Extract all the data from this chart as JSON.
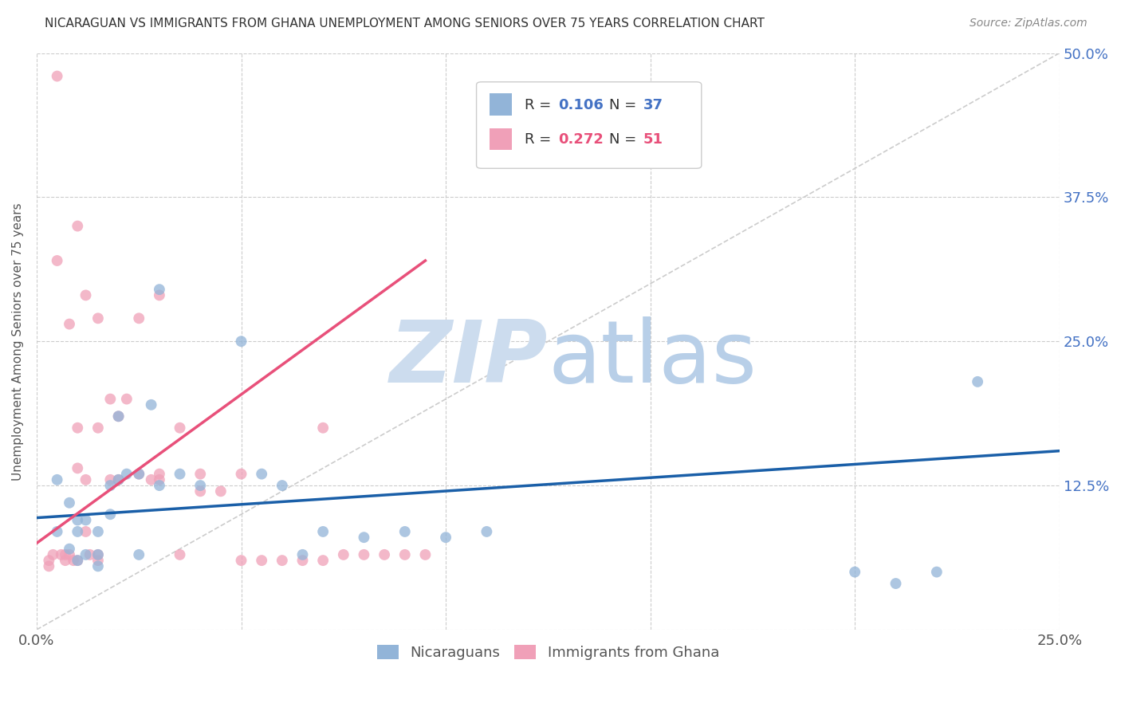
{
  "title": "NICARAGUAN VS IMMIGRANTS FROM GHANA UNEMPLOYMENT AMONG SENIORS OVER 75 YEARS CORRELATION CHART",
  "source": "Source: ZipAtlas.com",
  "ylabel": "Unemployment Among Seniors over 75 years",
  "xlim": [
    0,
    0.25
  ],
  "ylim": [
    0,
    0.5
  ],
  "xticks": [
    0.0,
    0.05,
    0.1,
    0.15,
    0.2,
    0.25
  ],
  "yticks": [
    0.0,
    0.125,
    0.25,
    0.375,
    0.5
  ],
  "blue_color": "#92b4d8",
  "pink_color": "#f0a0b8",
  "blue_line_color": "#1a5fa8",
  "pink_line_color": "#e8507a",
  "watermark_color": "#ccdcee",
  "blue_scatter_x": [
    0.005,
    0.005,
    0.008,
    0.008,
    0.01,
    0.01,
    0.01,
    0.012,
    0.012,
    0.015,
    0.015,
    0.015,
    0.018,
    0.018,
    0.02,
    0.02,
    0.022,
    0.025,
    0.025,
    0.028,
    0.03,
    0.03,
    0.035,
    0.04,
    0.05,
    0.055,
    0.06,
    0.065,
    0.07,
    0.08,
    0.09,
    0.1,
    0.11,
    0.2,
    0.21,
    0.22,
    0.23
  ],
  "blue_scatter_y": [
    0.13,
    0.085,
    0.11,
    0.07,
    0.095,
    0.085,
    0.06,
    0.095,
    0.065,
    0.085,
    0.065,
    0.055,
    0.125,
    0.1,
    0.185,
    0.13,
    0.135,
    0.135,
    0.065,
    0.195,
    0.295,
    0.125,
    0.135,
    0.125,
    0.25,
    0.135,
    0.125,
    0.065,
    0.085,
    0.08,
    0.085,
    0.08,
    0.085,
    0.05,
    0.04,
    0.05,
    0.215
  ],
  "pink_scatter_x": [
    0.003,
    0.003,
    0.004,
    0.005,
    0.005,
    0.006,
    0.007,
    0.007,
    0.008,
    0.008,
    0.009,
    0.01,
    0.01,
    0.01,
    0.012,
    0.012,
    0.013,
    0.015,
    0.015,
    0.015,
    0.018,
    0.018,
    0.02,
    0.02,
    0.022,
    0.025,
    0.025,
    0.028,
    0.03,
    0.03,
    0.03,
    0.035,
    0.035,
    0.04,
    0.04,
    0.045,
    0.05,
    0.05,
    0.055,
    0.06,
    0.065,
    0.07,
    0.07,
    0.075,
    0.08,
    0.085,
    0.09,
    0.095,
    0.01,
    0.012,
    0.015
  ],
  "pink_scatter_y": [
    0.06,
    0.055,
    0.065,
    0.48,
    0.32,
    0.065,
    0.06,
    0.065,
    0.265,
    0.065,
    0.06,
    0.35,
    0.175,
    0.06,
    0.29,
    0.085,
    0.065,
    0.27,
    0.175,
    0.06,
    0.2,
    0.13,
    0.185,
    0.13,
    0.2,
    0.27,
    0.135,
    0.13,
    0.13,
    0.29,
    0.135,
    0.175,
    0.065,
    0.12,
    0.135,
    0.12,
    0.06,
    0.135,
    0.06,
    0.06,
    0.06,
    0.175,
    0.06,
    0.065,
    0.065,
    0.065,
    0.065,
    0.065,
    0.14,
    0.13,
    0.065
  ],
  "blue_trend_x": [
    0.0,
    0.25
  ],
  "blue_trend_y": [
    0.097,
    0.155
  ],
  "pink_trend_x": [
    0.0,
    0.095
  ],
  "pink_trend_y": [
    0.075,
    0.32
  ]
}
